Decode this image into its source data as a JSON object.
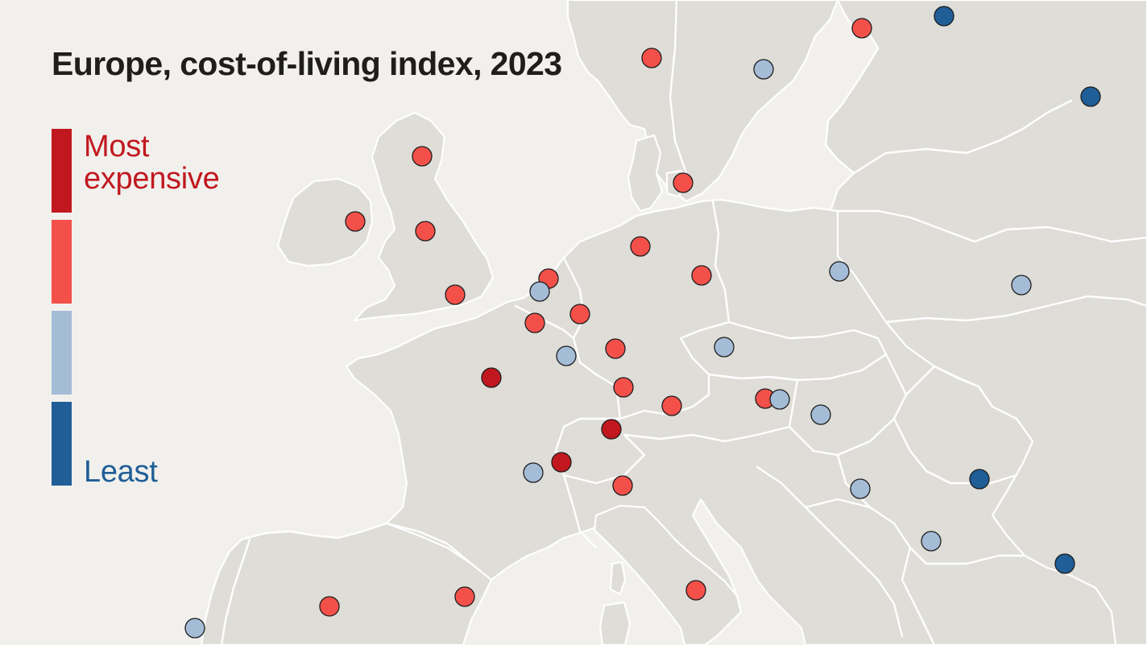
{
  "title": "Europe, cost-of-living index, 2023",
  "colors": {
    "background": "#f1f0ec",
    "land": "#dfddd8",
    "borders": "#ffffff",
    "most_expensive": "#c1181f",
    "expensive": "#f4504a",
    "cheaper": "#a5bcd7",
    "least_expensive": "#1f5e97"
  },
  "legend": {
    "top_label": "Most expensive",
    "bottom_label": "Least",
    "scale": [
      "most_expensive",
      "expensive",
      "cheaper",
      "least_expensive"
    ]
  },
  "city_markers": [
    {
      "name": "city-marker-reykjavik-region",
      "category": "expensive"
    },
    {
      "name": "city-marker-stockholm",
      "category": "cheaper"
    },
    {
      "name": "city-marker-helsinki",
      "category": "expensive"
    },
    {
      "name": "city-marker-st-petersburg",
      "category": "least_expensive"
    },
    {
      "name": "city-marker-moscow",
      "category": "least_expensive"
    },
    {
      "name": "city-marker-edinburgh",
      "category": "expensive"
    },
    {
      "name": "city-marker-copenhagen",
      "category": "expensive"
    },
    {
      "name": "city-marker-dublin",
      "category": "expensive"
    },
    {
      "name": "city-marker-manchester",
      "category": "expensive"
    },
    {
      "name": "city-marker-hamburg",
      "category": "expensive"
    },
    {
      "name": "city-marker-amsterdam",
      "category": "expensive"
    },
    {
      "name": "city-marker-berlin",
      "category": "expensive"
    },
    {
      "name": "city-marker-warsaw",
      "category": "cheaper"
    },
    {
      "name": "city-marker-kyiv",
      "category": "cheaper"
    },
    {
      "name": "city-marker-london",
      "category": "expensive"
    },
    {
      "name": "city-marker-brussels",
      "category": "cheaper"
    },
    {
      "name": "city-marker-dusseldorf",
      "category": "expensive"
    },
    {
      "name": "city-marker-lille",
      "category": "expensive"
    },
    {
      "name": "city-marker-luxembourg",
      "category": "cheaper"
    },
    {
      "name": "city-marker-frankfurt",
      "category": "expensive"
    },
    {
      "name": "city-marker-prague",
      "category": "cheaper"
    },
    {
      "name": "city-marker-paris",
      "category": "most_expensive"
    },
    {
      "name": "city-marker-stuttgart",
      "category": "expensive"
    },
    {
      "name": "city-marker-munich",
      "category": "expensive"
    },
    {
      "name": "city-marker-vienna",
      "category": "expensive"
    },
    {
      "name": "city-marker-bratislava",
      "category": "cheaper"
    },
    {
      "name": "city-marker-budapest",
      "category": "cheaper"
    },
    {
      "name": "city-marker-zurich",
      "category": "most_expensive"
    },
    {
      "name": "city-marker-geneva",
      "category": "most_expensive"
    },
    {
      "name": "city-marker-lyon",
      "category": "cheaper"
    },
    {
      "name": "city-marker-milan",
      "category": "expensive"
    },
    {
      "name": "city-marker-belgrade",
      "category": "cheaper"
    },
    {
      "name": "city-marker-bucharest",
      "category": "least_expensive"
    },
    {
      "name": "city-marker-sofia",
      "category": "cheaper"
    },
    {
      "name": "city-marker-istanbul",
      "category": "least_expensive"
    },
    {
      "name": "city-marker-rome",
      "category": "expensive"
    },
    {
      "name": "city-marker-barcelona",
      "category": "expensive"
    },
    {
      "name": "city-marker-madrid",
      "category": "expensive"
    },
    {
      "name": "city-marker-lisbon",
      "category": "cheaper"
    }
  ]
}
